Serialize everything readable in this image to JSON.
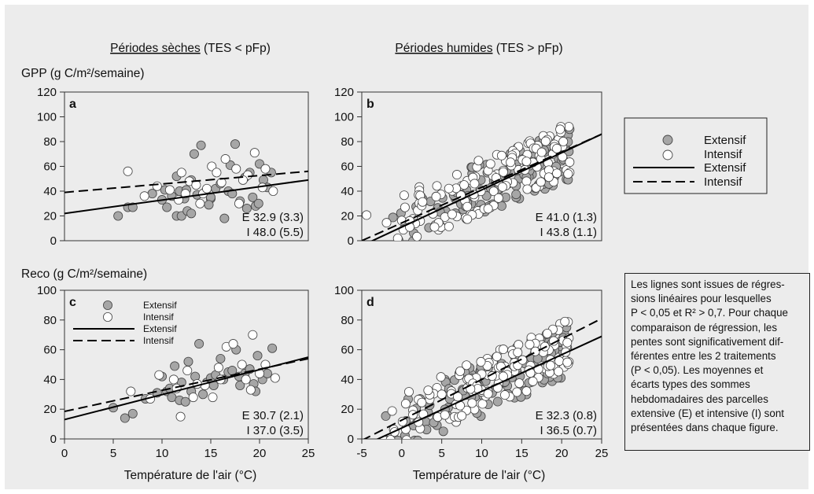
{
  "headers": {
    "dry": {
      "underlined": "Périodes sèches",
      "rest": " (TES < pFp)"
    },
    "wet": {
      "underlined": "Périodes humides",
      "rest": " (TES > pFp)"
    }
  },
  "row_labels": {
    "gpp": "GPP (g C/m²/semaine)",
    "reco": "Reco (g C/m²/semaine)"
  },
  "xlabel": "Température de l'air (°C)",
  "legend": {
    "extensif_points": "Extensif",
    "intensif_points": "Intensif",
    "extensif_line": "Extensif",
    "intensif_line": "Intensif"
  },
  "note_lines": [
    "Les lignes sont issues de régres-",
    "sions linéaires pour lesquelles",
    "P < 0,05 et R² > 0,7. Pour chaque",
    "comparaison de régression, les",
    "pentes sont significativement dif-",
    "férentes entre les 2 traitements",
    "(P < 0,05). Les moyennes et",
    "écarts types des sommes",
    "hebdomadaires des parcelles",
    "extensive (E) et intensive (I) sont",
    "présentées dans chaque figure."
  ],
  "colors": {
    "background": "#ececec",
    "extensif_fill": "#a6a6a6",
    "intensif_fill": "#ffffff",
    "marker_stroke": "#444444",
    "line": "#000000"
  },
  "chart_data": [
    {
      "id": "a",
      "type": "scatter",
      "panel_label": "a",
      "xlim": [
        0,
        25
      ],
      "ylim": [
        0,
        120
      ],
      "xticks": [],
      "yticks": [
        0,
        20,
        40,
        60,
        80,
        100,
        120
      ],
      "series": [
        {
          "name": "Extensif",
          "marker": "gray",
          "points": [
            [
              5.5,
              20
            ],
            [
              6.5,
              27
            ],
            [
              7,
              27
            ],
            [
              9,
              38
            ],
            [
              10,
              33
            ],
            [
              10.5,
              27
            ],
            [
              11,
              36
            ],
            [
              11.5,
              20
            ],
            [
              11.8,
              40
            ],
            [
              12,
              20
            ],
            [
              12.3,
              34
            ],
            [
              12.6,
              24
            ],
            [
              13,
              22
            ],
            [
              13.3,
              70
            ],
            [
              13.6,
              37
            ],
            [
              14,
              77
            ],
            [
              14.5,
              40
            ],
            [
              15,
              34
            ],
            [
              15.5,
              42
            ],
            [
              16,
              46
            ],
            [
              16.4,
              18
            ],
            [
              16.8,
              40
            ],
            [
              17.2,
              38
            ],
            [
              17.5,
              78
            ],
            [
              18,
              32
            ],
            [
              18.5,
              51
            ],
            [
              19,
              55
            ],
            [
              19.3,
              35
            ],
            [
              19.6,
              28
            ],
            [
              20,
              62
            ],
            [
              20.4,
              49
            ],
            [
              20.8,
              43
            ],
            [
              21.2,
              55
            ],
            [
              11.5,
              52
            ],
            [
              13,
              49
            ],
            [
              15,
              35
            ],
            [
              12.5,
              41
            ],
            [
              17,
              61
            ],
            [
              18.7,
              26
            ],
            [
              10.3,
              41
            ],
            [
              14.8,
              29
            ],
            [
              19.9,
              30
            ]
          ]
        },
        {
          "name": "Intensif",
          "marker": "white",
          "points": [
            [
              6.5,
              56
            ],
            [
              8.2,
              36
            ],
            [
              9.5,
              44
            ],
            [
              10.8,
              41
            ],
            [
              12,
              55
            ],
            [
              12.8,
              48
            ],
            [
              13.5,
              45
            ],
            [
              14.2,
              38
            ],
            [
              15.1,
              60
            ],
            [
              15.6,
              55
            ],
            [
              16.5,
              66
            ],
            [
              17.6,
              58
            ],
            [
              18.8,
              53
            ],
            [
              19.5,
              71
            ],
            [
              20.3,
              43
            ],
            [
              21.4,
              40
            ],
            [
              11.7,
              33
            ],
            [
              13.9,
              30
            ],
            [
              16.1,
              47
            ],
            [
              18.3,
              49
            ],
            [
              12.4,
              38
            ],
            [
              14.6,
              42
            ],
            [
              17.9,
              30
            ],
            [
              20.6,
              58
            ]
          ]
        }
      ],
      "lines": [
        {
          "name": "Extensif",
          "style": "solid",
          "x": [
            0,
            25
          ],
          "y": [
            22,
            49
          ]
        },
        {
          "name": "Intensif",
          "style": "dashed",
          "x": [
            0,
            25
          ],
          "y": [
            39,
            56
          ]
        }
      ],
      "annotations": [
        "E 32.9 (3.3)",
        "I 48.0 (5.5)"
      ]
    },
    {
      "id": "b",
      "type": "scatter",
      "panel_label": "b",
      "xlim": [
        -5,
        25
      ],
      "ylim": [
        0,
        120
      ],
      "xticks": [],
      "yticks": [
        0,
        20,
        40,
        60,
        80,
        100,
        120
      ],
      "generated": {
        "seed_gray": 11,
        "seed_white": 23,
        "n_gray": 120,
        "n_white": 140,
        "xmin": -5,
        "xmax": 21,
        "slope": 2.7,
        "intercept": 14,
        "spread": 22,
        "ycap": [
          -4,
          92
        ]
      },
      "series": [
        {
          "name": "Extensif",
          "marker": "gray",
          "points": []
        },
        {
          "name": "Intensif",
          "marker": "white",
          "points": []
        }
      ],
      "lines": [
        {
          "name": "Extensif",
          "style": "solid",
          "x": [
            -5,
            25
          ],
          "y": [
            -4,
            86
          ]
        },
        {
          "name": "Intensif",
          "style": "dashed",
          "x": [
            -5,
            25
          ],
          "y": [
            0,
            86
          ]
        }
      ],
      "annotations": [
        "E 41.0 (1.3)",
        "I 43.8 (1.1)"
      ]
    },
    {
      "id": "c",
      "type": "scatter",
      "panel_label": "c",
      "xlim": [
        0,
        25
      ],
      "ylim": [
        0,
        100
      ],
      "xticks": [
        0,
        5,
        10,
        15,
        20,
        25
      ],
      "yticks": [
        0,
        20,
        40,
        60,
        80,
        100
      ],
      "inline_legend": true,
      "series": [
        {
          "name": "Extensif",
          "marker": "gray",
          "points": [
            [
              5,
              21
            ],
            [
              6.2,
              14
            ],
            [
              7,
              17
            ],
            [
              8.3,
              27
            ],
            [
              9.5,
              31
            ],
            [
              10,
              42
            ],
            [
              10.5,
              32
            ],
            [
              11,
              28
            ],
            [
              11.3,
              49
            ],
            [
              11.8,
              26
            ],
            [
              12,
              38
            ],
            [
              12.4,
              25
            ],
            [
              13,
              32
            ],
            [
              13.4,
              42
            ],
            [
              13.8,
              64
            ],
            [
              14.2,
              30
            ],
            [
              14.6,
              38
            ],
            [
              15,
              41
            ],
            [
              15.5,
              43
            ],
            [
              16,
              54
            ],
            [
              16.3,
              40
            ],
            [
              16.8,
              45
            ],
            [
              17.2,
              46
            ],
            [
              17.6,
              60
            ],
            [
              18,
              36
            ],
            [
              18.5,
              44
            ],
            [
              19,
              47
            ],
            [
              19.4,
              37
            ],
            [
              19.8,
              56
            ],
            [
              20.3,
              40
            ],
            [
              20.8,
              44
            ],
            [
              21.3,
              61
            ],
            [
              12.7,
              52
            ],
            [
              15.3,
              36
            ],
            [
              17.9,
              42
            ],
            [
              19.6,
              32
            ],
            [
              10.8,
              34
            ]
          ]
        },
        {
          "name": "Intensif",
          "marker": "white",
          "points": [
            [
              6.8,
              32
            ],
            [
              8.8,
              27
            ],
            [
              9.7,
              43
            ],
            [
              11.5,
              34
            ],
            [
              11.9,
              15
            ],
            [
              12.6,
              46
            ],
            [
              13.2,
              28
            ],
            [
              14.4,
              36
            ],
            [
              15.2,
              28
            ],
            [
              16,
              40
            ],
            [
              16.6,
              62
            ],
            [
              17.3,
              64
            ],
            [
              18.2,
              50
            ],
            [
              19.3,
              70
            ],
            [
              20,
              44
            ],
            [
              21.6,
              41
            ],
            [
              13.6,
              37
            ],
            [
              15.8,
              48
            ],
            [
              18.6,
              40
            ],
            [
              20.6,
              50
            ],
            [
              11.2,
              40
            ],
            [
              19.1,
              33
            ]
          ]
        }
      ],
      "lines": [
        {
          "name": "Extensif",
          "style": "solid",
          "x": [
            0,
            25
          ],
          "y": [
            13,
            55
          ]
        },
        {
          "name": "Intensif",
          "style": "dashed",
          "x": [
            0,
            25
          ],
          "y": [
            18.5,
            54
          ]
        }
      ],
      "annotations": [
        "E 30.7 (2.1)",
        "I 37.0 (3.5)"
      ]
    },
    {
      "id": "d",
      "type": "scatter",
      "panel_label": "d",
      "xlim": [
        -5,
        25
      ],
      "ylim": [
        0,
        100
      ],
      "xticks": [
        -5,
        0,
        5,
        10,
        15,
        20,
        25
      ],
      "yticks": [
        0,
        20,
        40,
        60,
        80,
        100
      ],
      "generated": {
        "seed_gray": 37,
        "seed_white": 41,
        "n_gray": 130,
        "n_white": 150,
        "xmin": -5,
        "xmax": 21,
        "slope": 2.45,
        "intercept": 9,
        "spread": 18,
        "ycap": [
          -1,
          80
        ]
      },
      "series": [
        {
          "name": "Extensif",
          "marker": "gray",
          "points": []
        },
        {
          "name": "Intensif",
          "marker": "white",
          "points": []
        }
      ],
      "lines": [
        {
          "name": "Extensif",
          "style": "solid",
          "x": [
            -5,
            25
          ],
          "y": [
            -5,
            69
          ]
        },
        {
          "name": "Intensif",
          "style": "dashed",
          "x": [
            -5,
            25
          ],
          "y": [
            -1,
            81
          ]
        }
      ],
      "annotations": [
        "E 32.3 (0.8)",
        "I 36.5 (0.7)"
      ]
    }
  ]
}
